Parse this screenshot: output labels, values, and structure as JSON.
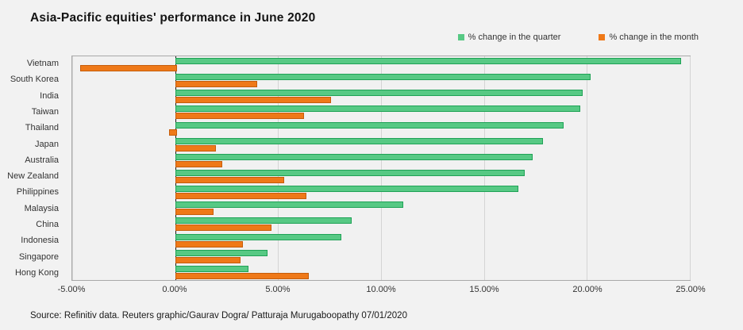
{
  "title": "Asia-Pacific equities' performance in June 2020",
  "source": "Source: Refinitiv data. Reuters graphic/Gaurav Dogra/ Patturaja Murugaboopathy 07/01/2020",
  "colors": {
    "background": "#f2f2f2",
    "quarter_fill": "#57c984",
    "quarter_border": "#1fa256",
    "month_fill": "#ef7918",
    "month_border": "#c55d0b",
    "gridline": "#d4d4d4",
    "zero_line": "#1a1a1a"
  },
  "chart_data": {
    "type": "bar",
    "orientation": "horizontal",
    "title": "Asia-Pacific equities' performance in June 2020",
    "categories": [
      "Vietnam",
      "South Korea",
      "India",
      "Taiwan",
      "Thailand",
      "Japan",
      "Australia",
      "New Zealand",
      "Philippines",
      "Malaysia",
      "China",
      "Indonesia",
      "Singapore",
      "Hong Kong"
    ],
    "series": [
      {
        "name": "% change in the quarter",
        "color": "#57c984",
        "values": [
          24.5,
          20.1,
          19.7,
          19.6,
          18.8,
          17.8,
          17.3,
          16.9,
          16.6,
          11.0,
          8.5,
          8.0,
          4.4,
          3.5
        ]
      },
      {
        "name": "% change in the month",
        "color": "#ef7918",
        "values": [
          -4.6,
          3.9,
          7.5,
          6.2,
          -0.3,
          1.9,
          2.2,
          5.2,
          6.3,
          1.8,
          4.6,
          3.2,
          3.1,
          6.4
        ]
      }
    ],
    "xlabel": "",
    "ylabel": "",
    "xlim": [
      -5,
      25
    ],
    "xtick_values": [
      -5,
      0,
      5,
      10,
      15,
      20,
      25
    ],
    "xticks": [
      "-5.00%",
      "0.00%",
      "5.00%",
      "10.00%",
      "15.00%",
      "20.00%",
      "25.00%"
    ],
    "grid": true,
    "legend_position": "top-right"
  }
}
